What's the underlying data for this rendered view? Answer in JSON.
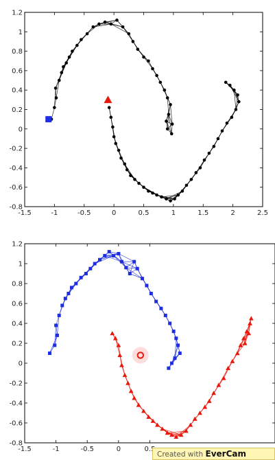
{
  "chart_data": [
    {
      "type": "scatter",
      "title": "",
      "xlabel": "",
      "ylabel": "",
      "xlim": [
        -1.5,
        2.5
      ],
      "ylim": [
        -0.8,
        1.2
      ],
      "xticks": [
        -1.5,
        -1,
        -0.5,
        0,
        0.5,
        1,
        1.5,
        2,
        2.5
      ],
      "xtick_labels": [
        "-1.5",
        "-1",
        "-0.5",
        "0",
        "0.5",
        "1",
        "1.5",
        "2",
        "2.5"
      ],
      "yticks": [
        -0.8,
        -0.6,
        -0.4,
        -0.2,
        0,
        0.2,
        0.4,
        0.6,
        0.8,
        1,
        1.2
      ],
      "ytick_labels": [
        "-0.8",
        "-0.6",
        "-0.4",
        "-0.2",
        "0",
        "0.2",
        "0.4",
        "0.6",
        "0.8",
        "1",
        "1.2"
      ],
      "grid": false,
      "series": [
        {
          "color": "#000000",
          "marker": "dot",
          "graph_edges": true,
          "x": [
            -1.05,
            -1.0,
            -0.97,
            -0.98,
            -0.92,
            -0.88,
            -0.85,
            -0.8,
            -0.75,
            -0.7,
            -0.62,
            -0.55,
            -0.45,
            -0.35,
            -0.25,
            -0.15,
            -0.05,
            0.05,
            0.15,
            0.25,
            0.32,
            0.4,
            0.5,
            0.58,
            0.65,
            0.72,
            0.78,
            0.85,
            0.9,
            0.95,
            0.92,
            0.98,
            0.88,
            0.9,
            0.97,
            -0.08,
            -0.05,
            -0.02,
            0.0,
            0.03,
            0.08,
            0.12,
            0.18,
            0.22,
            0.28,
            0.35,
            0.42,
            0.5,
            0.58,
            0.65,
            0.72,
            0.8,
            0.88,
            0.95,
            1.02,
            1.08,
            1.15,
            1.22,
            1.3,
            1.38,
            1.45,
            1.52,
            1.6,
            1.68,
            1.75,
            1.82,
            1.9,
            1.98,
            2.05,
            2.1,
            2.08,
            2.02,
            1.95,
            1.88
          ],
          "y": [
            0.1,
            0.22,
            0.32,
            0.42,
            0.5,
            0.58,
            0.64,
            0.68,
            0.74,
            0.8,
            0.86,
            0.92,
            0.98,
            1.05,
            1.08,
            1.1,
            1.08,
            1.12,
            1.05,
            0.98,
            0.9,
            0.82,
            0.74,
            0.7,
            0.62,
            0.55,
            0.48,
            0.4,
            0.32,
            0.25,
            0.15,
            0.05,
            0.08,
            0.0,
            -0.05,
            0.22,
            0.12,
            0.02,
            -0.08,
            -0.15,
            -0.22,
            -0.3,
            -0.36,
            -0.42,
            -0.48,
            -0.52,
            -0.56,
            -0.6,
            -0.64,
            -0.66,
            -0.68,
            -0.7,
            -0.72,
            -0.74,
            -0.72,
            -0.68,
            -0.64,
            -0.58,
            -0.52,
            -0.45,
            -0.4,
            -0.32,
            -0.25,
            -0.18,
            -0.1,
            -0.02,
            0.06,
            0.12,
            0.2,
            0.28,
            0.35,
            0.4,
            0.45,
            0.48
          ]
        },
        {
          "color": "#1f2ee0",
          "marker": "square",
          "x": [
            -1.1
          ],
          "y": [
            0.1
          ],
          "label_node": true
        },
        {
          "color": "#e8180c",
          "marker": "triangle",
          "x": [
            -0.1
          ],
          "y": [
            0.3
          ],
          "label_node": true
        }
      ]
    },
    {
      "type": "scatter",
      "title": "",
      "xlabel": "",
      "ylabel": "",
      "xlim": [
        -1.5,
        2.5
      ],
      "ylim": [
        -0.8,
        1.2
      ],
      "xticks": [
        -1.5,
        -1,
        -0.5,
        0,
        0.5
      ],
      "xtick_labels": [
        "-1.5",
        "-1",
        "-0.5",
        "0",
        "0.5"
      ],
      "yticks": [
        -0.8,
        -0.6,
        -0.4,
        -0.2,
        0,
        0.2,
        0.4,
        0.6,
        0.8,
        1,
        1.2
      ],
      "ytick_labels": [
        "-0.8",
        "-0.6",
        "-0.4",
        "-0.2",
        "0",
        "0.2",
        "0.4",
        "0.6",
        "0.8",
        "1",
        "1.2"
      ],
      "grid": false,
      "series": [
        {
          "color": "#1f2ee0",
          "marker": "square",
          "graph_edges": true,
          "x": [
            -1.1,
            -1.02,
            -0.98,
            -1.0,
            -0.95,
            -0.9,
            -0.85,
            -0.8,
            -0.75,
            -0.68,
            -0.6,
            -0.52,
            -0.45,
            -0.38,
            -0.3,
            -0.22,
            -0.15,
            -0.08,
            0.0,
            0.05,
            0.12,
            0.18,
            0.25,
            0.3,
            0.38,
            0.45,
            0.52,
            0.6,
            0.68,
            0.75,
            0.82,
            0.88,
            0.92,
            0.95,
            0.98,
            0.9,
            0.85,
            0.8
          ],
          "y": [
            0.1,
            0.18,
            0.28,
            0.38,
            0.48,
            0.58,
            0.65,
            0.7,
            0.76,
            0.8,
            0.86,
            0.9,
            0.95,
            1.0,
            1.04,
            1.08,
            1.12,
            1.08,
            1.1,
            1.02,
            0.96,
            0.9,
            1.02,
            0.95,
            0.85,
            0.78,
            0.7,
            0.62,
            0.55,
            0.48,
            0.4,
            0.32,
            0.25,
            0.18,
            0.1,
            0.05,
            0.0,
            -0.05
          ]
        },
        {
          "color": "#e8180c",
          "marker": "triangle",
          "graph_edges": true,
          "x": [
            -0.1,
            -0.05,
            0.0,
            0.02,
            0.05,
            0.1,
            0.15,
            0.2,
            0.25,
            0.32,
            0.4,
            0.48,
            0.55,
            0.62,
            0.7,
            0.78,
            0.85,
            0.92,
            1.0,
            1.08,
            1.15,
            1.22,
            1.3,
            1.38,
            1.45,
            1.52,
            1.6,
            1.68,
            1.75,
            1.82,
            1.9,
            1.95,
            2.0,
            2.05,
            2.1,
            2.12,
            2.08,
            2.02
          ],
          "y": [
            0.3,
            0.25,
            0.18,
            0.08,
            -0.02,
            -0.12,
            -0.2,
            -0.28,
            -0.35,
            -0.42,
            -0.48,
            -0.54,
            -0.58,
            -0.62,
            -0.66,
            -0.7,
            -0.72,
            -0.74,
            -0.72,
            -0.68,
            -0.62,
            -0.56,
            -0.5,
            -0.44,
            -0.38,
            -0.3,
            -0.22,
            -0.15,
            -0.05,
            0.02,
            0.1,
            0.18,
            0.25,
            0.32,
            0.4,
            0.45,
            0.3,
            0.2
          ]
        },
        {
          "color": "#e8180c",
          "marker": "open-circle",
          "x": [
            0.35
          ],
          "y": [
            0.08
          ],
          "highlighted": true
        }
      ]
    }
  ],
  "watermark": {
    "prefix": "Created with ",
    "brand": "EverCam"
  }
}
